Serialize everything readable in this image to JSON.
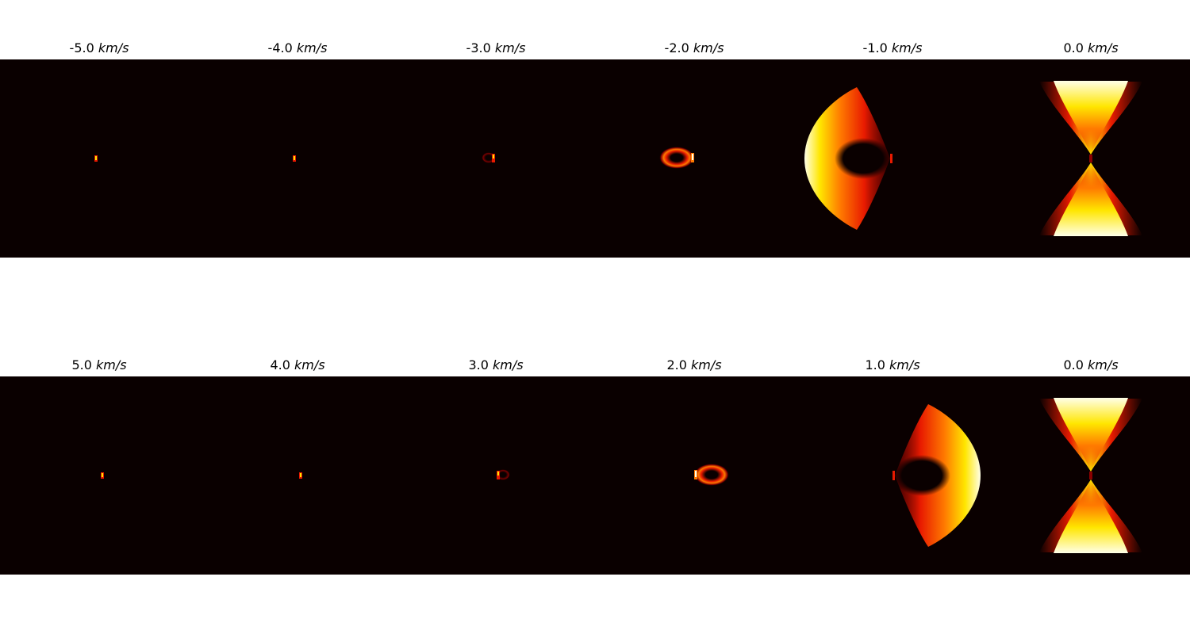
{
  "chart_data": {
    "type": "heatmap",
    "colormap": "afmhot",
    "unit_label": "km/s",
    "rows": [
      {
        "panels": [
          {
            "velocity": "-5.0",
            "blob_side": "left",
            "shape": "point"
          },
          {
            "velocity": "-4.0",
            "blob_side": "left",
            "shape": "point"
          },
          {
            "velocity": "-3.0",
            "blob_side": "left",
            "shape": "small-ring"
          },
          {
            "velocity": "-2.0",
            "blob_side": "left",
            "shape": "ring"
          },
          {
            "velocity": "-1.0",
            "blob_side": "left",
            "shape": "crescent"
          },
          {
            "velocity": "0.0",
            "blob_side": "none",
            "shape": "hourglass"
          }
        ]
      },
      {
        "panels": [
          {
            "velocity": "5.0",
            "blob_side": "right",
            "shape": "point"
          },
          {
            "velocity": "4.0",
            "blob_side": "right",
            "shape": "point"
          },
          {
            "velocity": "3.0",
            "blob_side": "right",
            "shape": "small-ring"
          },
          {
            "velocity": "2.0",
            "blob_side": "right",
            "shape": "ring"
          },
          {
            "velocity": "1.0",
            "blob_side": "right",
            "shape": "crescent"
          },
          {
            "velocity": "0.0",
            "blob_side": "none",
            "shape": "hourglass"
          }
        ]
      }
    ],
    "colors": {
      "background": "#0a0000",
      "dark_red": "#8b0000",
      "red": "#e81a00",
      "orange": "#ff7a00",
      "yellow": "#ffe600",
      "white": "#ffffe8"
    }
  }
}
